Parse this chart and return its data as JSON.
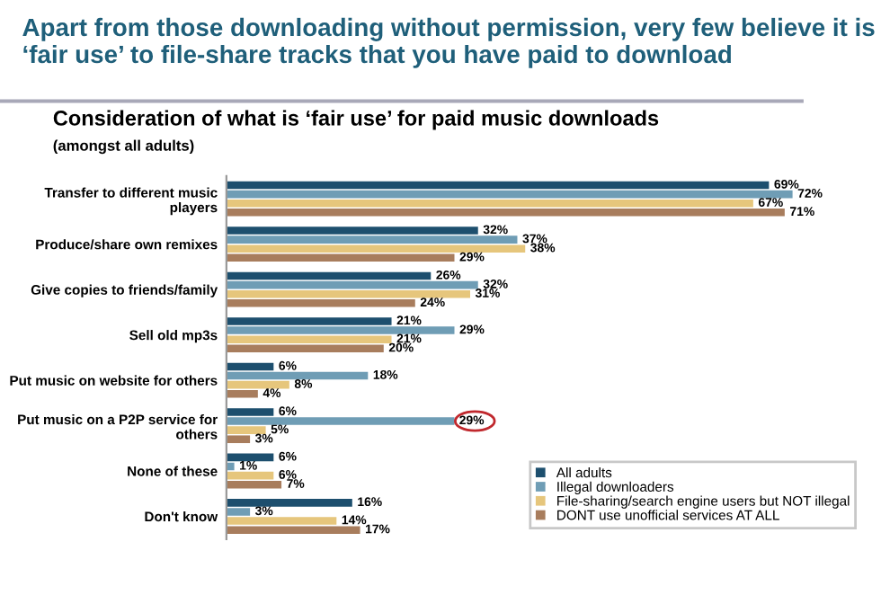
{
  "chart_data": {
    "type": "bar",
    "orientation": "horizontal",
    "title": "Apart from those downloading without permission, very few believe it is ‘fair use’ to file-share tracks that you have paid to download",
    "subtitle": "Consideration of what is ‘fair use’ for paid music downloads",
    "annotations": [
      "(amongst all adults)",
      {
        "text": "29%",
        "x": 29,
        "y": "Put music on a P2P service for others"
      }
    ],
    "categories": [
      "Transfer to different music players",
      "Produce/share own remixes",
      "Give copies to friends/family",
      "Sell old mp3s",
      "Put music on website for others",
      "Put music on a P2P service for others",
      "None of these",
      "Don't know"
    ],
    "series": [
      {
        "name": "All adults",
        "color": "#1d4f6e",
        "values": [
          69,
          32,
          26,
          21,
          6,
          6,
          6,
          16
        ],
        "value_labels": [
          "69%",
          "32%",
          "26%",
          "21%",
          "6%",
          "6%",
          "6%",
          "16%"
        ]
      },
      {
        "name": "Illegal downloaders",
        "color": "#6f9db5",
        "values": [
          72,
          37,
          32,
          29,
          18,
          29,
          1,
          3
        ],
        "value_labels": [
          "72%",
          "37%",
          "32%",
          "29%",
          "18%",
          null,
          "1%",
          "3%"
        ]
      },
      {
        "name": "File-sharing/search engine users but NOT illegal",
        "color": "#e6c67c",
        "values": [
          67,
          38,
          31,
          21,
          8,
          5,
          6,
          14
        ],
        "value_labels": [
          "67%",
          "38%",
          "31%",
          "21%",
          "8%",
          "5%",
          "6%",
          "14%"
        ]
      },
      {
        "name": "DONT use unofficial services AT ALL",
        "color": "#a87d5d",
        "values": [
          71,
          29,
          24,
          20,
          4,
          3,
          7,
          17
        ],
        "value_labels": [
          "71%",
          "29%",
          "24%",
          "20%",
          "4%",
          "3%",
          "7%",
          "17%"
        ]
      }
    ],
    "xlim": [
      0,
      80
    ],
    "tick_labels": "y",
    "grid": false,
    "legend": "bottom right"
  }
}
